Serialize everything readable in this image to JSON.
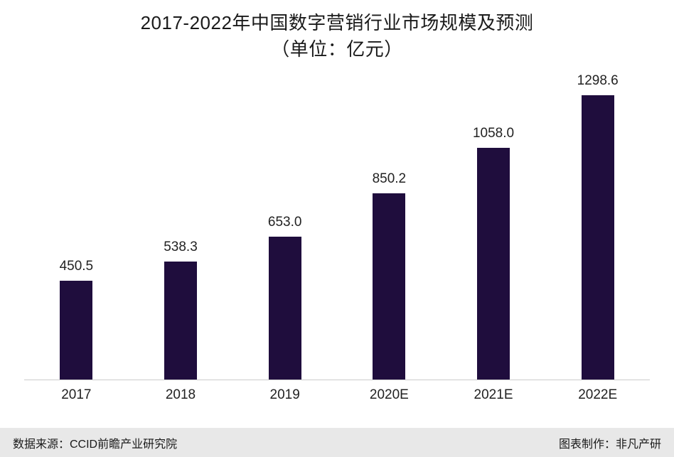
{
  "title": {
    "line1": "2017-2022年中国数字营销行业市场规模及预测",
    "line2": "（单位：亿元）"
  },
  "chart_data": {
    "type": "bar",
    "title": "2017-2022年中国数字营销行业市场规模及预测（单位：亿元）",
    "categories": [
      "2017",
      "2018",
      "2019",
      "2020E",
      "2021E",
      "2022E"
    ],
    "values": [
      450.5,
      538.3,
      653.0,
      850.2,
      1058.0,
      1298.6
    ],
    "value_labels": [
      "450.5",
      "538.3",
      "653.0",
      "850.2",
      "1058.0",
      "1298.6"
    ],
    "xlabel": "",
    "ylabel": "",
    "ylim": [
      0,
      1300
    ],
    "grid": false,
    "legend": "none",
    "bar_color": "#1f0d3d",
    "axis_line_color": "#cccccc"
  },
  "footer": {
    "source": "数据来源：CCID前瞻产业研究院",
    "credit": "图表制作：非凡产研"
  }
}
